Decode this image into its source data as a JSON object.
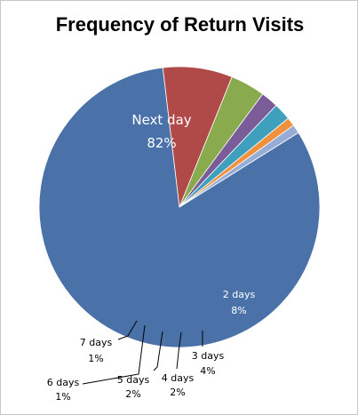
{
  "chart_data": {
    "type": "pie",
    "title": "Frequency of Return Visits",
    "slices": [
      {
        "label": "Next day",
        "value": 82,
        "value_label": "82%",
        "color": "#4a72a8"
      },
      {
        "label": "2 days",
        "value": 8,
        "value_label": "8%",
        "color": "#b04a48"
      },
      {
        "label": "3 days",
        "value": 4,
        "value_label": "4%",
        "color": "#8aaa4e"
      },
      {
        "label": "4 days",
        "value": 2,
        "value_label": "2%",
        "color": "#7a5c98"
      },
      {
        "label": "5 days",
        "value": 2,
        "value_label": "2%",
        "color": "#3ea0bd"
      },
      {
        "label": "6 days",
        "value": 1,
        "value_label": "1%",
        "color": "#f0913e"
      },
      {
        "label": "7 days",
        "value": 1,
        "value_label": "1%",
        "color": "#98add6"
      }
    ],
    "legend": "none",
    "label_colors": {
      "inside": "#ffffff",
      "outside": "#000000"
    }
  }
}
